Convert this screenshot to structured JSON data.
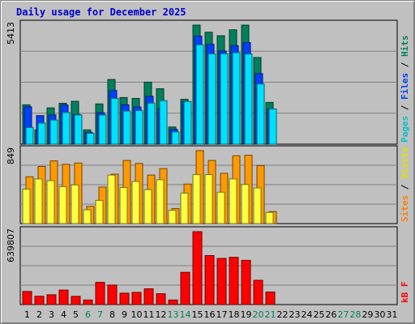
{
  "chart_data": {
    "type": "bar",
    "title": "Daily usage for December 2025",
    "days": [
      "1",
      "2",
      "3",
      "4",
      "5",
      "6",
      "7",
      "8",
      "9",
      "10",
      "11",
      "12",
      "13",
      "14",
      "15",
      "16",
      "17",
      "18",
      "19",
      "20",
      "21",
      "22",
      "23",
      "24",
      "25",
      "26",
      "27",
      "28",
      "29",
      "30",
      "31"
    ],
    "weekend_days": [
      "6",
      "7",
      "13",
      "14",
      "20",
      "21",
      "27",
      "28"
    ],
    "panels": [
      {
        "name": "pages-files-hits",
        "axis_max_label": "5413",
        "ymax": 5413,
        "side_label": [
          {
            "text": "Pages",
            "color": "#00c0d0"
          },
          {
            "text": " / ",
            "color": "#000000"
          },
          {
            "text": "Files",
            "color": "#0040ff"
          },
          {
            "text": " / ",
            "color": "#000000"
          },
          {
            "text": "Hits",
            "color": "#00805c"
          }
        ],
        "series": [
          {
            "name": "Hits",
            "color": "#00805c",
            "values": [
              1790,
              650,
              1650,
              1860,
              1950,
              650,
              1830,
              2940,
              2120,
              2080,
              2820,
              2520,
              780,
              2040,
              5413,
              5090,
              4930,
              5200,
              5413,
              3940,
              1900,
              0,
              0,
              0,
              0,
              0,
              0,
              0,
              0,
              0,
              0
            ]
          },
          {
            "name": "Files",
            "color": "#0040ff",
            "values": [
              1700,
              1300,
              1330,
              1780,
              1350,
              540,
              1430,
              2440,
              1790,
              1690,
              2180,
              1600,
              670,
              1930,
              4910,
              4540,
              4240,
              4480,
              4620,
              3210,
              1600,
              0,
              0,
              0,
              0,
              0,
              0,
              0,
              0,
              0,
              0
            ]
          },
          {
            "name": "Pages",
            "color": "#00e0ff",
            "values": [
              760,
              960,
              1100,
              1440,
              1330,
              500,
              1330,
              2080,
              1510,
              1530,
              1870,
              1980,
              560,
              1940,
              4520,
              4110,
              4110,
              4160,
              4100,
              2740,
              1600,
              0,
              0,
              0,
              0,
              0,
              0,
              0,
              0,
              0,
              0
            ]
          }
        ]
      },
      {
        "name": "sites-visits",
        "axis_max_label": "849",
        "ymax": 849,
        "side_label": [
          {
            "text": "Sites",
            "color": "#ff8000"
          },
          {
            "text": " / ",
            "color": "#000000"
          },
          {
            "text": "Visits",
            "color": "#e0e000"
          }
        ],
        "series": [
          {
            "name": "Visits",
            "color": "#ff9900",
            "values": [
              545,
              665,
              730,
              690,
              705,
              200,
              425,
              575,
              735,
              700,
              565,
              640,
              175,
              460,
              849,
              735,
              585,
              790,
              795,
              675,
              140,
              0,
              0,
              0,
              0,
              0,
              0,
              0,
              0,
              0,
              0
            ]
          },
          {
            "name": "Sites",
            "color": "#ffff40",
            "values": [
              400,
              520,
              500,
              430,
              450,
              160,
              270,
              565,
              420,
              490,
              395,
              510,
              155,
              355,
              570,
              570,
              365,
              520,
              455,
              415,
              130,
              0,
              0,
              0,
              0,
              0,
              0,
              0,
              0,
              0,
              0
            ]
          }
        ]
      },
      {
        "name": "kbytes",
        "axis_max_label": "639807",
        "ymax": 639807,
        "side_label": [
          {
            "text": "kB F",
            "color": "#ff0000"
          }
        ],
        "series": [
          {
            "name": "kB F",
            "color": "#ff0000",
            "values": [
              115000,
              73000,
              86000,
              127000,
              72000,
              40000,
              195000,
              171000,
              100000,
              107000,
              138000,
              95000,
              40000,
              283000,
              639807,
              430000,
              405000,
              415000,
              388000,
              213000,
              110000,
              0,
              0,
              0,
              0,
              0,
              0,
              0,
              0,
              0,
              0
            ]
          }
        ]
      }
    ]
  }
}
